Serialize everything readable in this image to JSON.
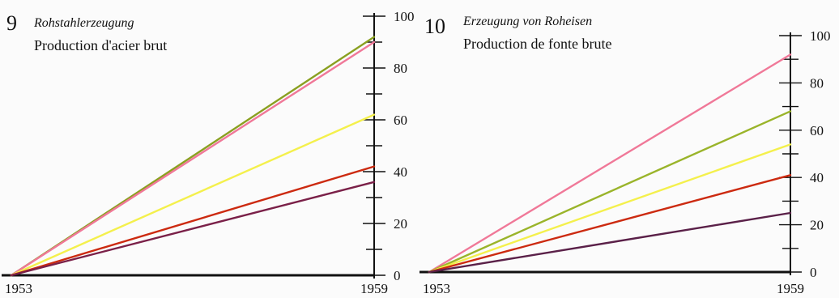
{
  "chart_data": [
    {
      "type": "line",
      "number": "9",
      "title": "Rohstahlerzeugung",
      "subtitle": "Production d'acier brut",
      "x_labels": [
        "1953",
        "1959"
      ],
      "x": [
        1953,
        1959
      ],
      "ylim": [
        0,
        100
      ],
      "y_ticks": [
        "0",
        "20",
        "40",
        "60",
        "80",
        "100"
      ],
      "series": [
        {
          "color": "#8aa020",
          "values": [
            0,
            92
          ]
        },
        {
          "color": "#f07898",
          "values": [
            0,
            90
          ]
        },
        {
          "color": "#f4f04c",
          "values": [
            0,
            62
          ]
        },
        {
          "color": "#cc2a10",
          "values": [
            0,
            42
          ]
        },
        {
          "color": "#7a2048",
          "values": [
            0,
            36
          ]
        }
      ]
    },
    {
      "type": "line",
      "number": "10",
      "title": "Erzeugung von Roheisen",
      "subtitle": "Production de fonte brute",
      "x_labels": [
        "1953",
        "1959"
      ],
      "x": [
        1953,
        1959
      ],
      "ylim": [
        0,
        100
      ],
      "y_ticks": [
        "0",
        "20",
        "40",
        "60",
        "80",
        "100"
      ],
      "series": [
        {
          "color": "#f07898",
          "values": [
            0,
            92
          ]
        },
        {
          "color": "#9ab42a",
          "values": [
            0,
            68
          ]
        },
        {
          "color": "#f4f04c",
          "values": [
            0,
            54
          ]
        },
        {
          "color": "#cc2a10",
          "values": [
            0,
            41
          ]
        },
        {
          "color": "#5a2048",
          "values": [
            0,
            25
          ]
        }
      ]
    }
  ]
}
